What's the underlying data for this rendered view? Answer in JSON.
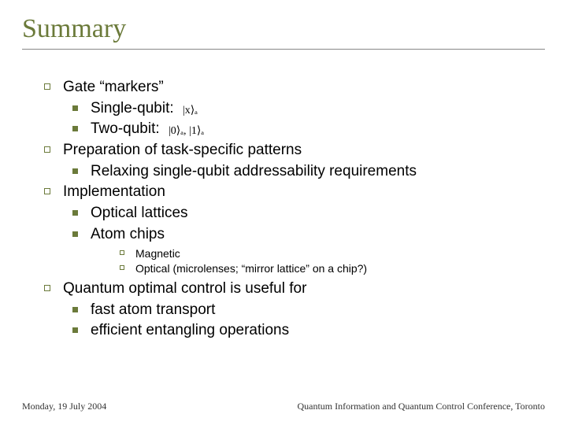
{
  "title": "Summary",
  "items": {
    "b1": "Gate “markers”",
    "b1a": "Single-qubit:",
    "b1a_math": "|x⟩ₐ",
    "b1b": "Two-qubit:",
    "b1b_math": "|0⟩ₐ, |1⟩ₐ",
    "b2": "Preparation of task-specific patterns",
    "b2a": "Relaxing single-qubit addressability requirements",
    "b3": "Implementation",
    "b3a": "Optical lattices",
    "b3b": "Atom chips",
    "b3b1": "Magnetic",
    "b3b2": "Optical (microlenses; “mirror lattice” on a chip?)",
    "b4": "Quantum optimal control is useful for",
    "b4a": "fast atom transport",
    "b4b": "efficient entangling operations"
  },
  "footer": {
    "left": "Monday, 19 July 2004",
    "right": "Quantum Information and Quantum Control Conference, Toronto"
  },
  "colors": {
    "accent": "#6b7a3a",
    "text": "#000000",
    "background": "#ffffff",
    "rule": "#888888"
  },
  "typography": {
    "title_fontsize": 34,
    "body_fontsize": 19,
    "sub_fontsize": 14,
    "footer_fontsize": 12
  }
}
